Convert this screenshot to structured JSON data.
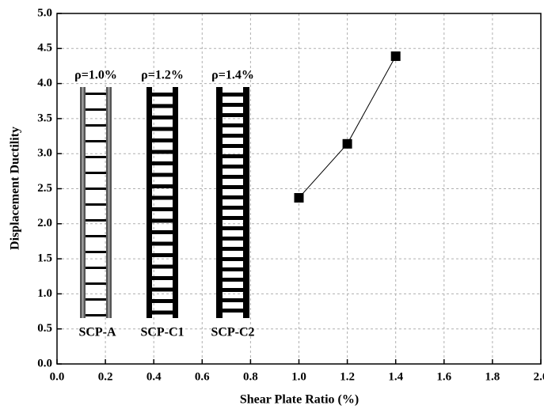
{
  "chart_data": {
    "type": "line",
    "x_label": "Shear Plate Ratio (%)",
    "y_label": "Displacement Ductility",
    "x": [
      1.0,
      1.2,
      1.4
    ],
    "values": [
      2.37,
      3.14,
      4.39
    ],
    "color": "#000000",
    "marker": "square",
    "grid": true,
    "xlim": [
      0,
      2
    ],
    "ylim": [
      0,
      5
    ],
    "xticks": [
      {
        "value": 0,
        "label": "0.0"
      },
      0.2,
      0.4,
      0.6,
      0.8,
      {
        "value": 1,
        "label": "1.0"
      },
      1.2,
      1.4,
      1.6,
      1.8,
      {
        "value": 2,
        "label": "2.0"
      }
    ],
    "yticks": [
      {
        "value": 0,
        "label": "0.0"
      },
      0.5,
      {
        "value": 1,
        "label": "1.0"
      },
      1.5,
      {
        "value": 2,
        "label": "2.0"
      },
      2.5,
      {
        "value": 3,
        "label": "3.0"
      },
      3.5,
      {
        "value": 4,
        "label": "4.0"
      },
      4.5,
      {
        "value": 5,
        "label": "5.0"
      }
    ],
    "ratio_labels": [
      "ρ=1.0%",
      "ρ=1.2%",
      "ρ=1.4%"
    ],
    "specimen_labels": [
      "SCP-A",
      "SCP-C1",
      "SCP-C2"
    ]
  }
}
